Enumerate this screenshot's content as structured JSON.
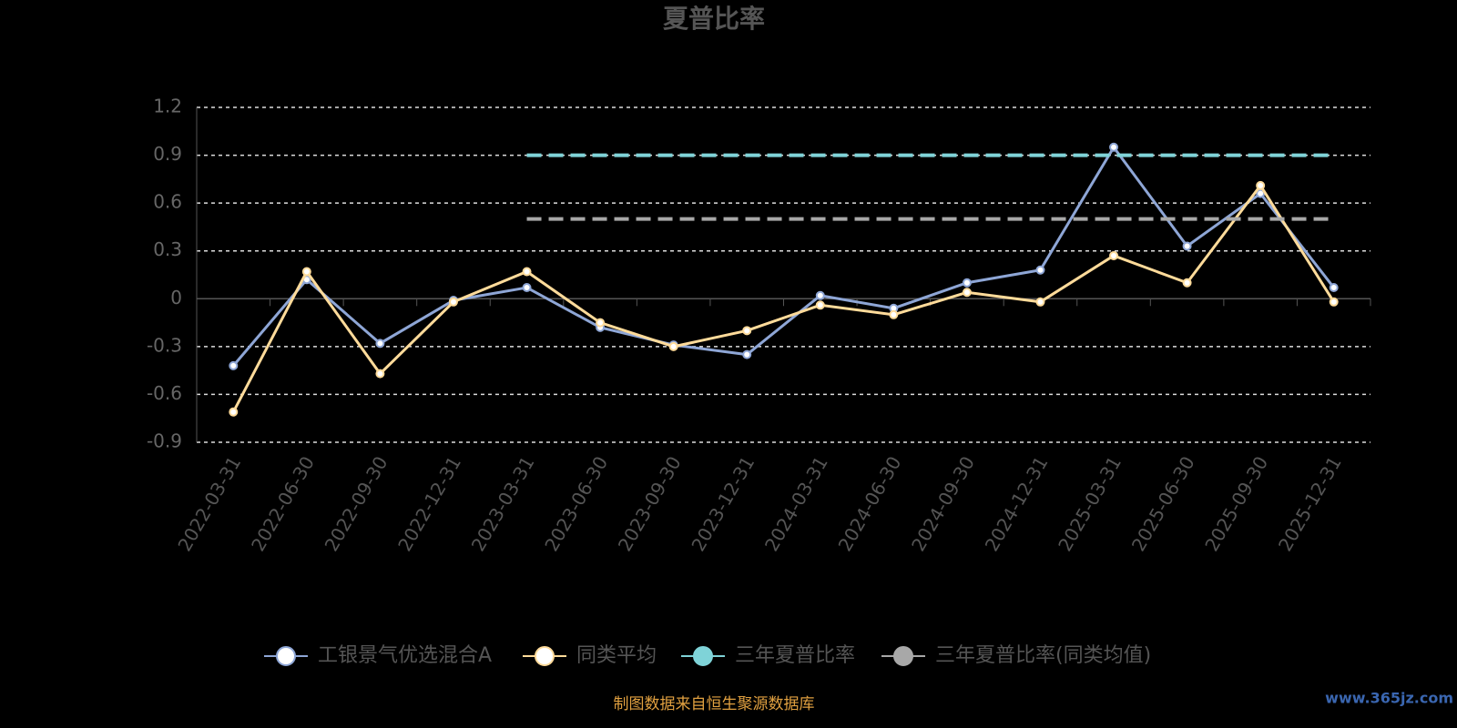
{
  "chart_data": {
    "type": "line",
    "title": "夏普比率",
    "categories": [
      "2022-03-31",
      "2022-06-30",
      "2022-09-30",
      "2022-12-31",
      "2023-03-31",
      "2023-06-30",
      "2023-09-30",
      "2023-12-31",
      "2024-03-31",
      "2024-06-30",
      "2024-09-30",
      "2024-12-31",
      "2025-03-31",
      "2025-06-30",
      "2025-09-30",
      "2025-12-31"
    ],
    "series": [
      {
        "name": "工银景气优选混合A",
        "color": "#8ea6d6",
        "values": [
          -0.42,
          0.12,
          -0.28,
          -0.01,
          0.07,
          -0.18,
          -0.29,
          -0.35,
          0.02,
          -0.06,
          0.1,
          0.18,
          0.95,
          0.33,
          0.66,
          0.07
        ]
      },
      {
        "name": "同类平均",
        "color": "#ffdb9a",
        "values": [
          -0.71,
          0.17,
          -0.47,
          -0.02,
          0.17,
          -0.15,
          -0.3,
          -0.2,
          -0.04,
          -0.1,
          0.04,
          -0.02,
          0.27,
          0.1,
          0.71,
          -0.02
        ]
      },
      {
        "name": "三年夏普比率",
        "color": "#7fd3d8",
        "dashed": true,
        "values": [
          null,
          null,
          null,
          null,
          0.9,
          0.9,
          0.9,
          0.9,
          0.9,
          0.9,
          0.9,
          0.9,
          0.9,
          0.9,
          0.9,
          0.9
        ]
      },
      {
        "name": "三年夏普比率(同类均值)",
        "color": "#a8a8a8",
        "dashed": true,
        "values": [
          null,
          null,
          null,
          null,
          0.5,
          0.5,
          0.5,
          0.5,
          0.5,
          0.5,
          0.5,
          0.5,
          0.5,
          0.5,
          0.5,
          0.5
        ]
      }
    ],
    "ylim": [
      -0.9,
      1.2
    ],
    "yticks": [
      -0.9,
      -0.6,
      -0.3,
      0,
      0.3,
      0.6,
      0.9,
      1.2
    ],
    "grid": true,
    "source": "制图数据来自恒生聚源数据库",
    "watermark": "www.365jz.com"
  }
}
